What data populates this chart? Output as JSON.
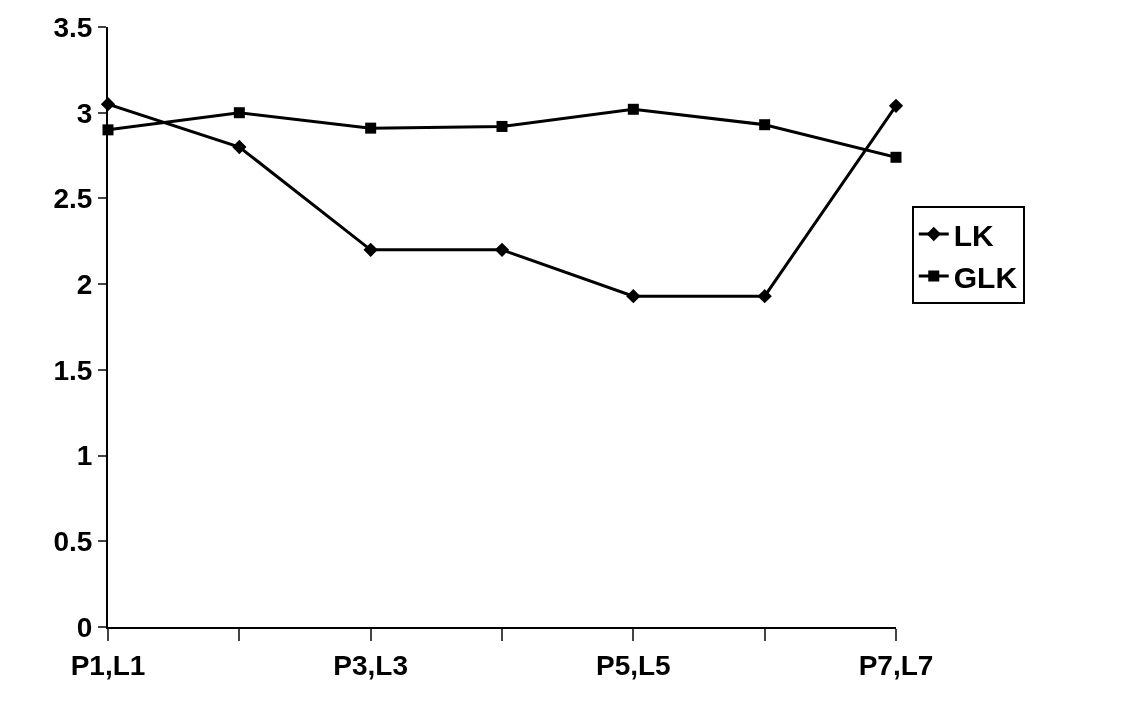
{
  "chart_data": {
    "type": "line",
    "categories": [
      "P1,L1",
      null,
      "P3,L3",
      null,
      "P5,L5",
      null,
      "P7,L7"
    ],
    "series": [
      {
        "name": "LK",
        "color": "#000000",
        "marker": "diamond",
        "values": [
          3.05,
          2.8,
          2.2,
          2.2,
          1.93,
          1.93,
          3.04
        ]
      },
      {
        "name": "GLK",
        "color": "#000000",
        "marker": "square",
        "values": [
          2.9,
          3.0,
          2.91,
          2.92,
          3.02,
          2.93,
          2.74
        ]
      }
    ],
    "ylim": [
      0,
      3.5
    ],
    "yticks": [
      0,
      0.5,
      1,
      1.5,
      2,
      2.5,
      3,
      3.5
    ],
    "grid": false,
    "legend": "right",
    "line_style": "solid"
  }
}
